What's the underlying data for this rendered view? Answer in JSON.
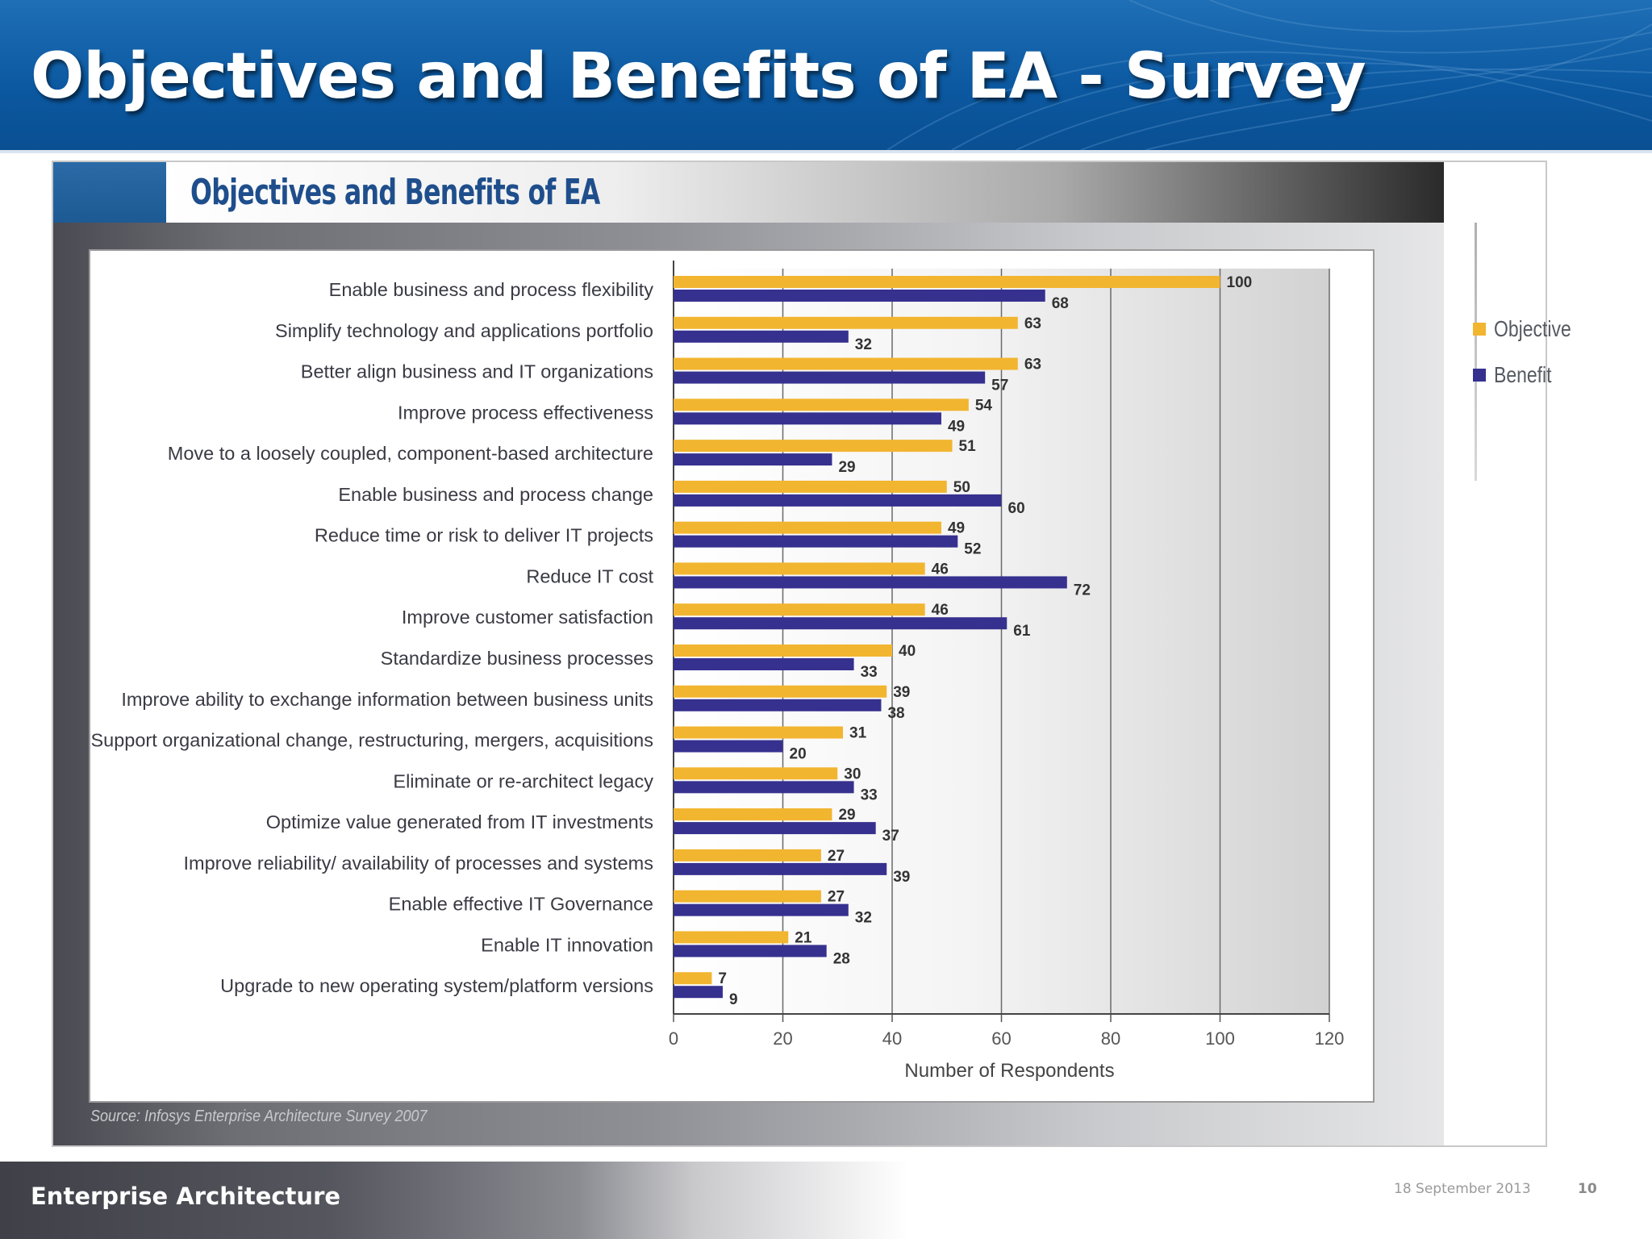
{
  "slide": {
    "title": "Objectives and Benefits of EA - Survey",
    "footer_label": "Enterprise Architecture",
    "date": "18 September 2013",
    "page_number": "10",
    "header_color": "#0b58a0"
  },
  "figure": {
    "title": "Objectives and Benefits of EA",
    "source": "Source: Infosys Enterprise Architecture Survey 2007"
  },
  "chart_data": {
    "type": "bar",
    "orientation": "horizontal",
    "title": "Objectives and Benefits of EA",
    "xlabel": "Number of Respondents",
    "ylabel": "",
    "xlim": [
      0,
      120
    ],
    "xticks": [
      0,
      20,
      40,
      60,
      80,
      100,
      120
    ],
    "grid": true,
    "legend_position": "right",
    "categories": [
      "Enable business and process flexibility",
      "Simplify technology and applications portfolio",
      "Better align business and IT organizations",
      "Improve process effectiveness",
      "Move to a loosely coupled, component-based architecture",
      "Enable business and process change",
      "Reduce time or risk to deliver IT projects",
      "Reduce IT cost",
      "Improve customer satisfaction",
      "Standardize business processes",
      "Improve ability to exchange information between business units",
      "Support organizational change, restructuring, mergers, acquisitions",
      "Eliminate or re-architect legacy",
      "Optimize value generated from IT investments",
      "Improve reliability/ availability of processes and systems",
      "Enable effective IT Governance",
      "Enable IT innovation",
      "Upgrade to new operating system/platform versions"
    ],
    "series": [
      {
        "name": "Objective",
        "color": "#f2b530",
        "values": [
          100,
          63,
          63,
          54,
          51,
          50,
          49,
          46,
          46,
          40,
          39,
          31,
          30,
          29,
          27,
          27,
          21,
          7
        ]
      },
      {
        "name": "Benefit",
        "color": "#36318f",
        "values": [
          68,
          32,
          57,
          49,
          29,
          60,
          52,
          72,
          61,
          33,
          38,
          20,
          33,
          37,
          39,
          32,
          28,
          9
        ]
      }
    ]
  }
}
